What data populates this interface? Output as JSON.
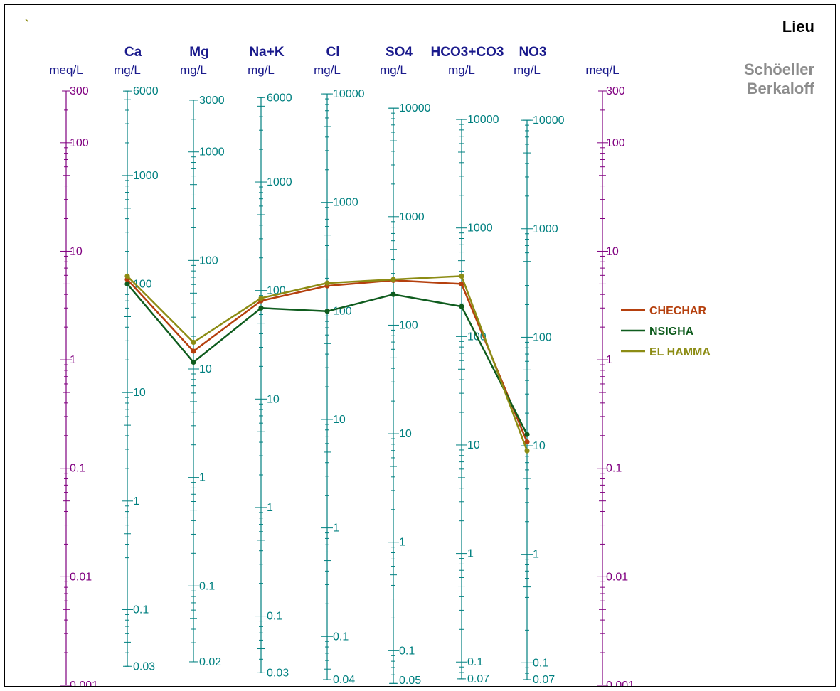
{
  "chart_data": {
    "type": "line",
    "title": "Lieu",
    "subtitle": [
      "Schöeller",
      "Berkaloff"
    ],
    "corner_mark": "`",
    "meq_axis": {
      "unit": "meq/L",
      "range": [
        0.001,
        300
      ],
      "labels": [
        "300",
        "100",
        "10",
        "1",
        "0.1",
        "0.01",
        "0.001"
      ],
      "color": "#800080"
    },
    "ion_axes": [
      {
        "ion": "Ca",
        "unit": "mg/L",
        "factor": 20.04,
        "range": [
          0.03,
          6000
        ],
        "labels": [
          "6000",
          "1000",
          "100",
          "10",
          "1",
          "0.1",
          "0.03"
        ]
      },
      {
        "ion": "Mg",
        "unit": "mg/L",
        "factor": 12.15,
        "range": [
          0.02,
          3000
        ],
        "labels": [
          "3000",
          "1000",
          "100",
          "10",
          "1",
          "0.1",
          "0.02"
        ]
      },
      {
        "ion": "Na+K",
        "unit": "mg/L",
        "factor": 23.0,
        "range": [
          0.03,
          6000
        ],
        "labels": [
          "6000",
          "1000",
          "100",
          "10",
          "1",
          "0.1",
          "0.03"
        ]
      },
      {
        "ion": "Cl",
        "unit": "mg/L",
        "factor": 35.45,
        "range": [
          0.04,
          10000
        ],
        "labels": [
          "10000",
          "1000",
          "100",
          "10",
          "1",
          "0.1",
          "0.04"
        ]
      },
      {
        "ion": "SO4",
        "unit": "mg/L",
        "factor": 48.0,
        "range": [
          0.05,
          10000
        ],
        "labels": [
          "10000",
          "1000",
          "100",
          "10",
          "1",
          "0.1",
          "0.05"
        ]
      },
      {
        "ion": "HCO3+CO3",
        "unit": "mg/L",
        "factor": 61.0,
        "range": [
          0.07,
          10000
        ],
        "labels": [
          "10000",
          "1000",
          "100",
          "10",
          "1",
          "0.1",
          "0.07"
        ]
      },
      {
        "ion": "NO3",
        "unit": "mg/L",
        "factor": 62.0,
        "range": [
          0.07,
          10000
        ],
        "labels": [
          "10000",
          "1000",
          "100",
          "10",
          "1",
          "0.1",
          "0.07"
        ]
      }
    ],
    "series": [
      {
        "name": "CHECHAR",
        "color": "#b5400e",
        "meq": [
          5.5,
          1.2,
          3.5,
          4.8,
          5.4,
          5.0,
          0.175
        ]
      },
      {
        "name": "NSIGHA",
        "color": "#0f5c1e",
        "meq": [
          5.0,
          0.95,
          3.0,
          2.8,
          4.0,
          3.1,
          0.205
        ]
      },
      {
        "name": "EL HAMMA",
        "color": "#8c8c14",
        "meq": [
          5.9,
          1.45,
          3.7,
          5.1,
          5.5,
          5.9,
          0.145
        ]
      }
    ],
    "legend_position": "right",
    "grid": false
  }
}
